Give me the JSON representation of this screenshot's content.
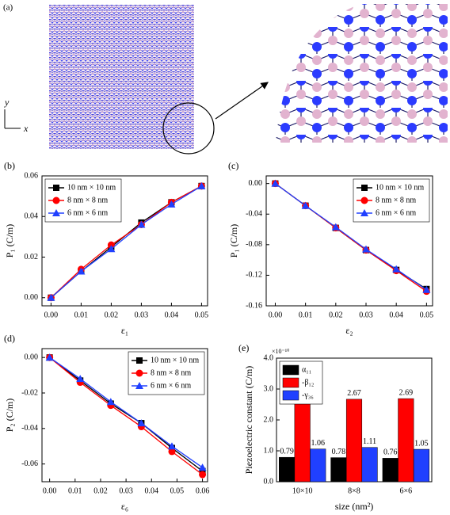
{
  "figure_a": {
    "panel_label": "(a)",
    "y_label": "y",
    "x_label": "x"
  },
  "chart_data": [
    {
      "type": "line",
      "panel_label": "(b)",
      "x_label": "ε₁",
      "y_label": "P₁ (C/m)",
      "x": [
        0,
        0.01,
        0.02,
        0.03,
        0.04,
        0.05
      ],
      "xlim": [
        -0.003,
        0.052
      ],
      "xticks": [
        {
          "value": 0,
          "label": "0.00"
        },
        {
          "value": 0.01,
          "label": "0.01"
        },
        {
          "value": 0.02,
          "label": "0.02"
        },
        {
          "value": 0.03,
          "label": "0.03"
        },
        {
          "value": 0.04,
          "label": "0.04"
        },
        {
          "value": 0.05,
          "label": "0.05"
        }
      ],
      "ylim": [
        -0.004,
        0.06
      ],
      "yticks": [
        {
          "value": 0,
          "label": "0.00"
        },
        {
          "value": 0.02,
          "label": "0.02"
        },
        {
          "value": 0.04,
          "label": "0.04"
        },
        {
          "value": 0.06,
          "label": "0.06"
        }
      ],
      "legend": "upper left",
      "series": [
        {
          "name": "10 nm × 10 nm",
          "color": "#000000",
          "marker": "square",
          "values": [
            0,
            0.013,
            0.025,
            0.037,
            0.047,
            0.055
          ]
        },
        {
          "name": "8 nm × 8 nm",
          "color": "#ff0000",
          "marker": "circle",
          "values": [
            0,
            0.014,
            0.026,
            0.036,
            0.047,
            0.055
          ]
        },
        {
          "name": "6 nm × 6 nm",
          "color": "#2040ff",
          "marker": "triangle",
          "values": [
            0,
            0.013,
            0.024,
            0.036,
            0.046,
            0.055
          ]
        }
      ]
    },
    {
      "type": "line",
      "panel_label": "(c)",
      "x_label": "ε₂",
      "y_label": "P₁ (C/m)",
      "x": [
        0,
        0.01,
        0.02,
        0.03,
        0.04,
        0.05
      ],
      "xlim": [
        -0.003,
        0.052
      ],
      "xticks": [
        {
          "value": 0,
          "label": "0.00"
        },
        {
          "value": 0.01,
          "label": "0.01"
        },
        {
          "value": 0.02,
          "label": "0.02"
        },
        {
          "value": 0.03,
          "label": "0.03"
        },
        {
          "value": 0.04,
          "label": "0.04"
        },
        {
          "value": 0.05,
          "label": "0.05"
        }
      ],
      "ylim": [
        -0.16,
        0.01
      ],
      "yticks": [
        {
          "value": 0,
          "label": "0.00"
        },
        {
          "value": -0.04,
          "label": "-0.04"
        },
        {
          "value": -0.08,
          "label": "-0.08"
        },
        {
          "value": -0.12,
          "label": "-0.12"
        },
        {
          "value": -0.16,
          "label": "-0.16"
        }
      ],
      "legend": "upper right",
      "series": [
        {
          "name": "10 nm × 10 nm",
          "color": "#000000",
          "marker": "square",
          "values": [
            0,
            -0.029,
            -0.058,
            -0.087,
            -0.113,
            -0.138
          ]
        },
        {
          "name": "8 nm × 8 nm",
          "color": "#ff0000",
          "marker": "circle",
          "values": [
            0,
            -0.029,
            -0.058,
            -0.087,
            -0.114,
            -0.141
          ]
        },
        {
          "name": "6 nm × 6 nm",
          "color": "#2040ff",
          "marker": "triangle",
          "values": [
            0,
            -0.029,
            -0.057,
            -0.086,
            -0.112,
            -0.139
          ]
        }
      ]
    },
    {
      "type": "line",
      "panel_label": "(d)",
      "x_label": "ε₆",
      "y_label": "P₂ (C/m)",
      "x": [
        0,
        0.012,
        0.024,
        0.036,
        0.048,
        0.06
      ],
      "xlim": [
        -0.003,
        0.062
      ],
      "xticks": [
        {
          "value": 0,
          "label": "0.00"
        },
        {
          "value": 0.01,
          "label": "0.01"
        },
        {
          "value": 0.02,
          "label": "0.02"
        },
        {
          "value": 0.03,
          "label": "0.03"
        },
        {
          "value": 0.04,
          "label": "0.04"
        },
        {
          "value": 0.05,
          "label": "0.05"
        },
        {
          "value": 0.06,
          "label": "0.06"
        }
      ],
      "ylim": [
        -0.07,
        0.005
      ],
      "yticks": [
        {
          "value": 0,
          "label": "0.00"
        },
        {
          "value": -0.02,
          "label": "-0.02"
        },
        {
          "value": -0.04,
          "label": "-0.04"
        },
        {
          "value": -0.06,
          "label": "-0.06"
        }
      ],
      "legend": "upper right",
      "series": [
        {
          "name": "10 nm × 10 nm",
          "color": "#000000",
          "marker": "square",
          "values": [
            0,
            -0.013,
            -0.026,
            -0.037,
            -0.051,
            -0.064
          ]
        },
        {
          "name": "8 nm × 8 nm",
          "color": "#ff0000",
          "marker": "circle",
          "values": [
            0,
            -0.014,
            -0.027,
            -0.039,
            -0.053,
            -0.066
          ]
        },
        {
          "name": "6 nm × 6 nm",
          "color": "#2040ff",
          "marker": "triangle",
          "values": [
            0,
            -0.012,
            -0.025,
            -0.037,
            -0.05,
            -0.062
          ]
        }
      ]
    },
    {
      "type": "bar",
      "panel_label": "(e)",
      "x_label": "size (nm²)",
      "y_label": "Piezoelectric constant (C/m)",
      "y_multiplier": "×10⁻¹⁰",
      "categories": [
        "10×10",
        "8×8",
        "6×6"
      ],
      "ylim": [
        0,
        4
      ],
      "yticks": [
        {
          "value": 0,
          "label": "0.0"
        },
        {
          "value": 1,
          "label": "1.0"
        },
        {
          "value": 2,
          "label": "2.0"
        },
        {
          "value": 3,
          "label": "3.0"
        },
        {
          "value": 4,
          "label": "4.0"
        }
      ],
      "legend": "upper left",
      "series": [
        {
          "name": "α₁₁",
          "color": "#000000",
          "values": [
            0.79,
            0.78,
            0.76
          ]
        },
        {
          "name": "-β₁₂",
          "color": "#ff0000",
          "values": [
            2.72,
            2.67,
            2.69
          ]
        },
        {
          "name": "-γ₃₆",
          "color": "#2040ff",
          "values": [
            1.06,
            1.11,
            1.05
          ]
        }
      ]
    }
  ]
}
